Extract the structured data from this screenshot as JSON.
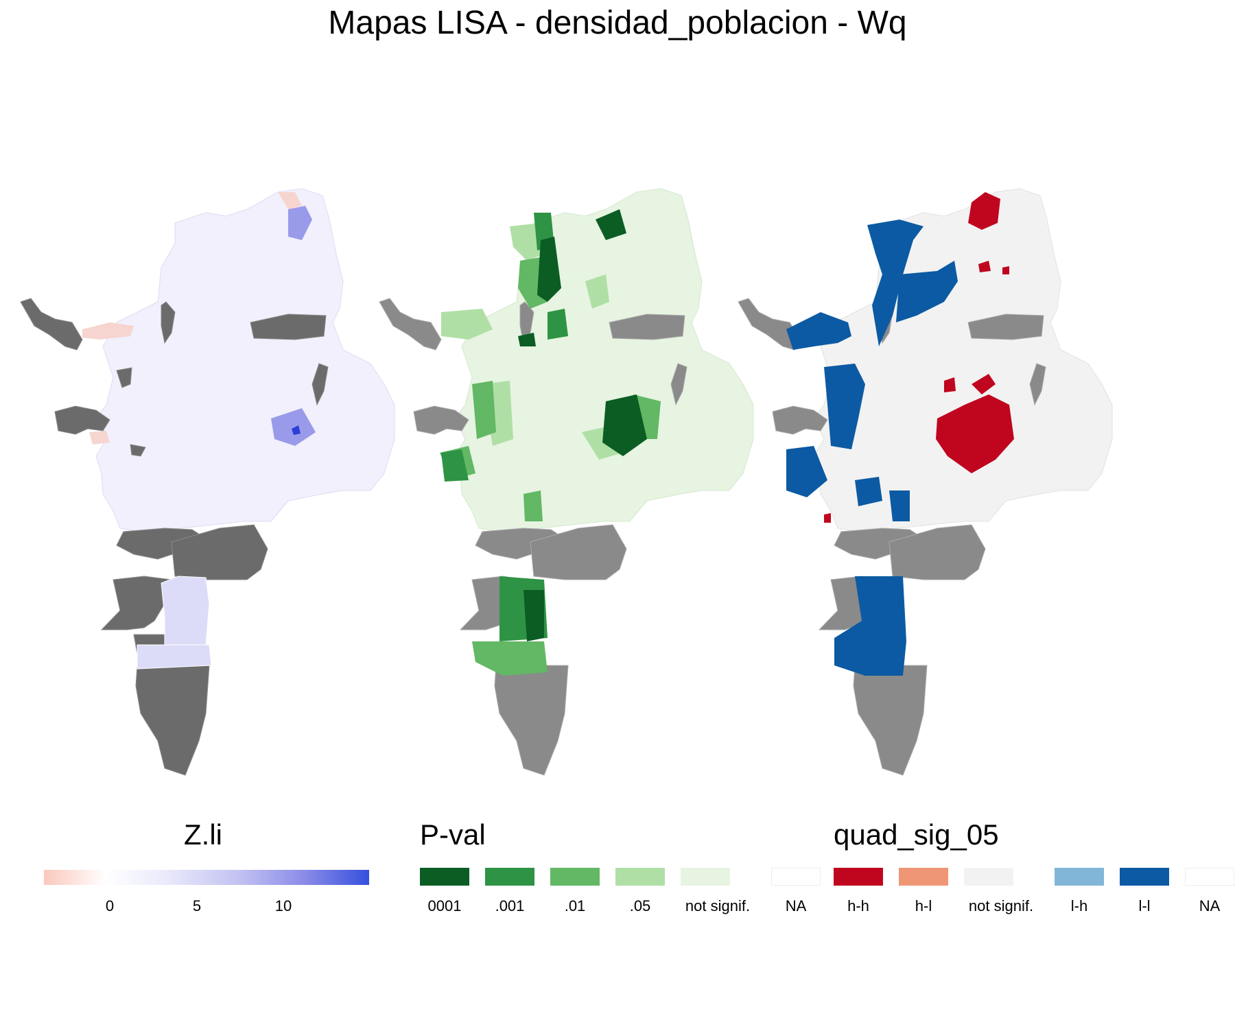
{
  "title": "Mapas LISA - densidad_poblacion - Wq",
  "colors": {
    "na_region": "#6b6b6b",
    "na_region_light": "#8a8a8a",
    "zli_low": "#fac8bd",
    "zli_mid": "#ffffff",
    "zli_high": "#3550dd",
    "pval_0001": "#0b5d23",
    "pval_001": "#2e9344",
    "pval_01": "#62b864",
    "pval_05": "#b0dfa6",
    "pval_not": "#e6f4e1",
    "quad_hh": "#c0061e",
    "quad_hl": "#ef9775",
    "quad_not": "#f2f2f2",
    "quad_lh": "#82b6d8",
    "quad_ll": "#0c5aa3",
    "na": "#ffffff"
  },
  "legends": {
    "zli": {
      "title": "Z.li",
      "ticks": [
        "0",
        "5",
        "10"
      ],
      "tick_values": [
        0,
        5,
        10
      ],
      "range": [
        -3.8,
        15.3
      ]
    },
    "pval": {
      "title": "P-val",
      "labels": [
        "0001",
        ".001",
        ".01",
        ".05",
        "not signif.",
        "NA"
      ],
      "colors": [
        "#0b5d23",
        "#2e9344",
        "#62b864",
        "#b0dfa6",
        "#e6f4e1",
        "#ffffff"
      ]
    },
    "quad": {
      "title": "quad_sig_05",
      "labels": [
        "h-h",
        "h-l",
        "not signif.",
        "l-h",
        "l-l",
        "NA"
      ],
      "colors": [
        "#c0061e",
        "#ef9775",
        "#f2f2f2",
        "#82b6d8",
        "#0c5aa3",
        "#ffffff"
      ]
    }
  }
}
